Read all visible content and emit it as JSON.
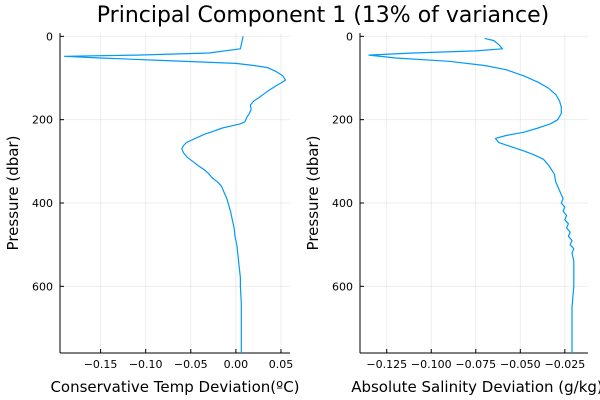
{
  "title": "Principal Component 1 (13% of variance)",
  "colors": {
    "series": "#009af9"
  },
  "chart_data": [
    {
      "type": "line",
      "xlabel": "Conservative Temp Deviation(ºC)",
      "ylabel": "Pressure (dbar)",
      "xlim": [
        -0.195,
        0.06
      ],
      "ylim": [
        760,
        -8
      ],
      "xticks": [
        -0.15,
        -0.1,
        -0.05,
        0.0,
        0.05
      ],
      "xtick_labels": [
        "−0.15",
        "−0.10",
        "−0.05",
        "0.00",
        "0.05"
      ],
      "yticks": [
        0,
        200,
        400,
        600
      ],
      "ytick_labels": [
        "0",
        "200",
        "400",
        "600"
      ],
      "grid": true,
      "series": [
        {
          "x": [
            0.008,
            0.007,
            0.006,
            0.005,
            -0.03,
            -0.11,
            -0.19,
            -0.15,
            -0.08,
            0.0,
            0.02,
            0.035,
            0.045,
            0.052,
            0.055,
            0.05,
            0.045,
            0.04,
            0.035,
            0.03,
            0.025,
            0.02,
            0.018,
            0.016,
            0.017,
            0.015,
            0.012,
            0.01,
            0.005,
            -0.005,
            -0.015,
            -0.025,
            -0.035,
            -0.045,
            -0.05,
            -0.055,
            -0.058,
            -0.06,
            -0.058,
            -0.054,
            -0.048,
            -0.042,
            -0.035,
            -0.03,
            -0.026,
            -0.02,
            -0.016,
            -0.013,
            -0.01,
            -0.008,
            -0.006,
            -0.004,
            -0.002,
            -0.001,
            0.001,
            0.002,
            0.003,
            0.004,
            0.005,
            0.005,
            0.006,
            0.006,
            0.006,
            0.006
          ],
          "y": [
            0,
            10,
            20,
            30,
            40,
            45,
            48,
            52,
            58,
            65,
            70,
            75,
            85,
            95,
            105,
            112,
            118,
            125,
            132,
            140,
            148,
            155,
            160,
            165,
            175,
            185,
            195,
            205,
            210,
            215,
            220,
            228,
            235,
            245,
            250,
            255,
            262,
            270,
            280,
            290,
            300,
            310,
            320,
            330,
            340,
            350,
            360,
            375,
            390,
            405,
            420,
            440,
            460,
            480,
            500,
            520,
            540,
            560,
            580,
            600,
            640,
            680,
            720,
            760
          ]
        }
      ]
    },
    {
      "type": "line",
      "xlabel": "Absolute Salinity Deviation (g/kg)",
      "ylabel": "Pressure (dbar)",
      "xlim": [
        -0.14,
        -0.012
      ],
      "ylim": [
        760,
        -8
      ],
      "xticks": [
        -0.125,
        -0.1,
        -0.075,
        -0.05,
        -0.025
      ],
      "xtick_labels": [
        "−0.125",
        "−0.100",
        "−0.075",
        "−0.050",
        "−0.025"
      ],
      "yticks": [
        0,
        200,
        400,
        600
      ],
      "ytick_labels": [
        "0",
        "200",
        "400",
        "600"
      ],
      "grid": true,
      "series": [
        {
          "x": [
            -0.07,
            -0.065,
            -0.062,
            -0.06,
            -0.075,
            -0.11,
            -0.135,
            -0.12,
            -0.09,
            -0.07,
            -0.058,
            -0.048,
            -0.04,
            -0.034,
            -0.03,
            -0.028,
            -0.027,
            -0.027,
            -0.029,
            -0.033,
            -0.04,
            -0.048,
            -0.058,
            -0.064,
            -0.062,
            -0.055,
            -0.048,
            -0.042,
            -0.037,
            -0.034,
            -0.031,
            -0.03,
            -0.028,
            -0.026,
            -0.027,
            -0.025,
            -0.026,
            -0.024,
            -0.025,
            -0.023,
            -0.024,
            -0.022,
            -0.023,
            -0.021,
            -0.022,
            -0.02,
            -0.021,
            -0.02,
            -0.02,
            -0.02,
            -0.021,
            -0.021,
            -0.021
          ],
          "y": [
            5,
            10,
            20,
            30,
            35,
            40,
            45,
            52,
            60,
            70,
            80,
            95,
            110,
            125,
            140,
            155,
            170,
            185,
            200,
            210,
            220,
            230,
            238,
            245,
            255,
            265,
            275,
            285,
            295,
            310,
            330,
            350,
            370,
            390,
            400,
            410,
            420,
            430,
            440,
            450,
            460,
            470,
            480,
            490,
            500,
            510,
            520,
            540,
            560,
            600,
            650,
            700,
            760
          ]
        }
      ]
    }
  ]
}
